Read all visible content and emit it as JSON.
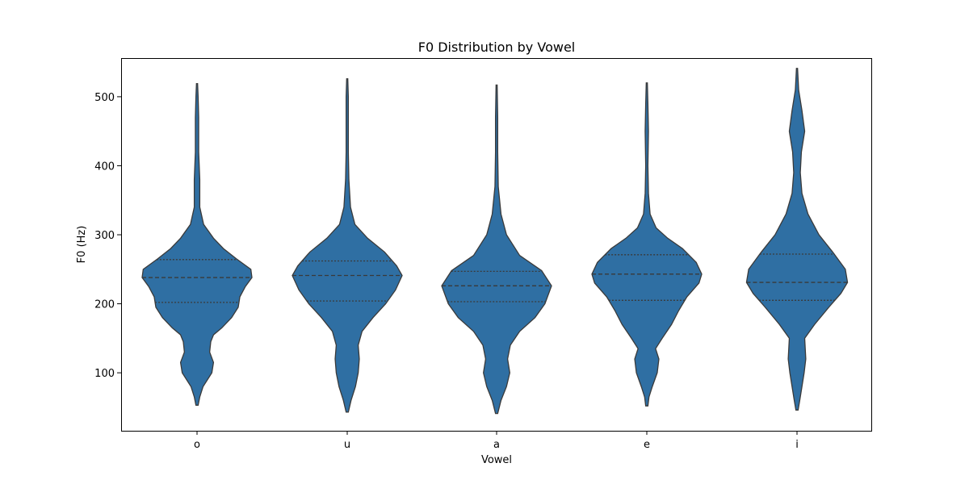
{
  "chart_data": {
    "type": "violin",
    "title": "F0 Distribution by Vowel",
    "xlabel": "Vowel",
    "ylabel": "F0 (Hz)",
    "categories": [
      "o",
      "u",
      "a",
      "e",
      "i"
    ],
    "ylim": [
      16,
      556
    ],
    "yticks": [
      100,
      200,
      300,
      400,
      500
    ],
    "grid": false,
    "color": "#2f6fa3",
    "series": [
      {
        "category": "o",
        "min": 53,
        "max": 519,
        "q1": 202,
        "median": 238,
        "q3": 264,
        "profile": [
          [
            53,
            0.02
          ],
          [
            65,
            0.05
          ],
          [
            80,
            0.11
          ],
          [
            100,
            0.27
          ],
          [
            115,
            0.3
          ],
          [
            130,
            0.23
          ],
          [
            145,
            0.25
          ],
          [
            155,
            0.3
          ],
          [
            165,
            0.45
          ],
          [
            180,
            0.63
          ],
          [
            195,
            0.75
          ],
          [
            210,
            0.78
          ],
          [
            225,
            0.88
          ],
          [
            238,
            1.0
          ],
          [
            250,
            0.98
          ],
          [
            265,
            0.72
          ],
          [
            280,
            0.48
          ],
          [
            295,
            0.3
          ],
          [
            315,
            0.12
          ],
          [
            340,
            0.05
          ],
          [
            380,
            0.05
          ],
          [
            420,
            0.03
          ],
          [
            470,
            0.03
          ],
          [
            500,
            0.02
          ],
          [
            519,
            0.01
          ]
        ]
      },
      {
        "category": "u",
        "min": 43,
        "max": 526,
        "q1": 204,
        "median": 241,
        "q3": 262,
        "profile": [
          [
            43,
            0.02
          ],
          [
            60,
            0.07
          ],
          [
            80,
            0.15
          ],
          [
            100,
            0.2
          ],
          [
            120,
            0.22
          ],
          [
            140,
            0.2
          ],
          [
            160,
            0.27
          ],
          [
            180,
            0.47
          ],
          [
            200,
            0.7
          ],
          [
            220,
            0.88
          ],
          [
            241,
            1.0
          ],
          [
            255,
            0.9
          ],
          [
            275,
            0.68
          ],
          [
            295,
            0.37
          ],
          [
            315,
            0.14
          ],
          [
            340,
            0.06
          ],
          [
            380,
            0.03
          ],
          [
            420,
            0.02
          ],
          [
            470,
            0.02
          ],
          [
            500,
            0.02
          ],
          [
            526,
            0.01
          ]
        ]
      },
      {
        "category": "a",
        "min": 41,
        "max": 517,
        "q1": 203,
        "median": 226,
        "q3": 247,
        "profile": [
          [
            41,
            0.02
          ],
          [
            60,
            0.08
          ],
          [
            80,
            0.18
          ],
          [
            100,
            0.24
          ],
          [
            120,
            0.2
          ],
          [
            140,
            0.25
          ],
          [
            160,
            0.42
          ],
          [
            180,
            0.7
          ],
          [
            200,
            0.88
          ],
          [
            226,
            1.0
          ],
          [
            248,
            0.82
          ],
          [
            270,
            0.42
          ],
          [
            300,
            0.18
          ],
          [
            330,
            0.08
          ],
          [
            370,
            0.03
          ],
          [
            420,
            0.02
          ],
          [
            470,
            0.02
          ],
          [
            517,
            0.01
          ]
        ]
      },
      {
        "category": "e",
        "min": 52,
        "max": 520,
        "q1": 205,
        "median": 243,
        "q3": 271,
        "profile": [
          [
            52,
            0.02
          ],
          [
            65,
            0.04
          ],
          [
            80,
            0.1
          ],
          [
            100,
            0.19
          ],
          [
            120,
            0.22
          ],
          [
            135,
            0.16
          ],
          [
            150,
            0.28
          ],
          [
            170,
            0.45
          ],
          [
            190,
            0.58
          ],
          [
            210,
            0.73
          ],
          [
            230,
            0.95
          ],
          [
            243,
            1.0
          ],
          [
            260,
            0.9
          ],
          [
            280,
            0.65
          ],
          [
            295,
            0.38
          ],
          [
            310,
            0.17
          ],
          [
            330,
            0.06
          ],
          [
            360,
            0.03
          ],
          [
            400,
            0.02
          ],
          [
            450,
            0.03
          ],
          [
            490,
            0.02
          ],
          [
            520,
            0.01
          ]
        ]
      },
      {
        "category": "i",
        "min": 46,
        "max": 541,
        "q1": 205,
        "median": 231,
        "q3": 272,
        "profile": [
          [
            46,
            0.02
          ],
          [
            60,
            0.05
          ],
          [
            80,
            0.09
          ],
          [
            100,
            0.13
          ],
          [
            120,
            0.16
          ],
          [
            150,
            0.14
          ],
          [
            170,
            0.32
          ],
          [
            195,
            0.58
          ],
          [
            215,
            0.8
          ],
          [
            231,
            0.92
          ],
          [
            250,
            0.88
          ],
          [
            275,
            0.65
          ],
          [
            300,
            0.4
          ],
          [
            330,
            0.2
          ],
          [
            360,
            0.09
          ],
          [
            390,
            0.06
          ],
          [
            420,
            0.08
          ],
          [
            450,
            0.14
          ],
          [
            480,
            0.09
          ],
          [
            510,
            0.03
          ],
          [
            541,
            0.01
          ]
        ]
      }
    ]
  }
}
